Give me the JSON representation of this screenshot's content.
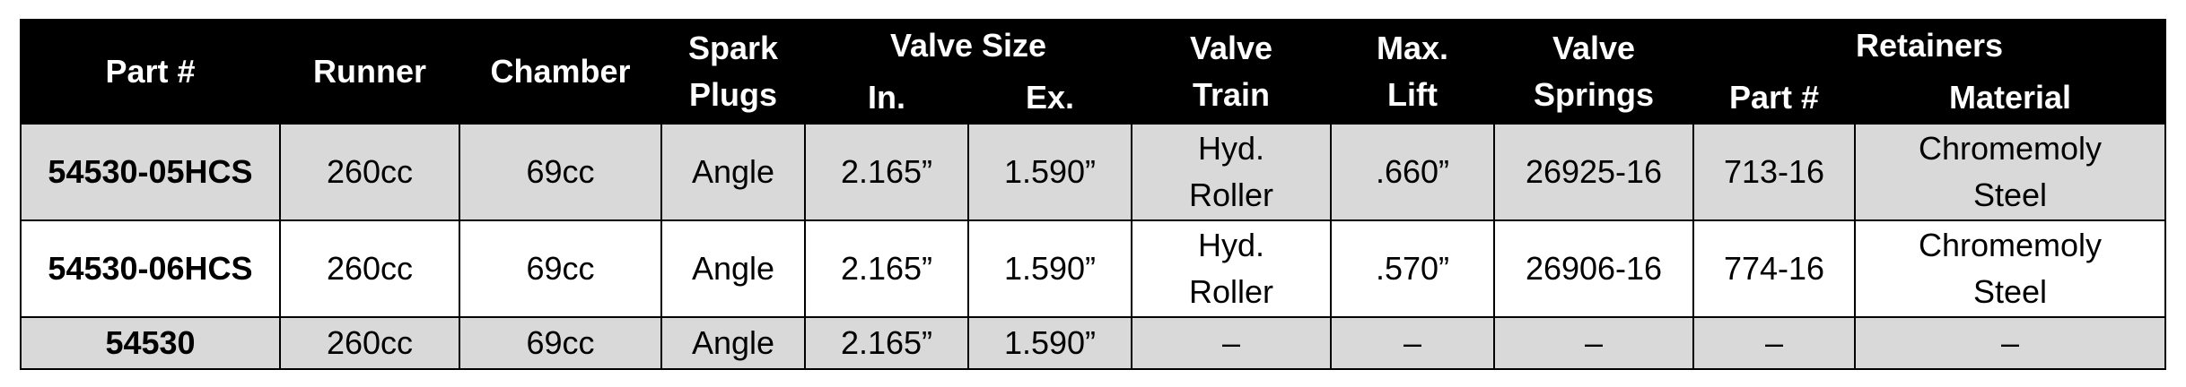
{
  "headers": {
    "part": "Part #",
    "runner": "Runner",
    "chamber": "Chamber",
    "spark_line1": "Spark",
    "spark_line2": "Plugs",
    "valve_size": "Valve Size",
    "valve_in": "In.",
    "valve_ex": "Ex.",
    "valve_train_line1": "Valve",
    "valve_train_line2": "Train",
    "max_lift_line1": "Max.",
    "max_lift_line2": "Lift",
    "valve_springs_line1": "Valve",
    "valve_springs_line2": "Springs",
    "retainers": "Retainers",
    "retainers_part": "Part #",
    "retainers_material": "Material"
  },
  "rows": [
    {
      "part": "54530-05HCS",
      "runner": "260cc",
      "chamber": "69cc",
      "spark": "Angle",
      "valve_in": "2.165”",
      "valve_ex": "1.590”",
      "valve_train_line1": "Hyd.",
      "valve_train_line2": "Roller",
      "max_lift": ".660”",
      "springs": "26925-16",
      "ret_part": "713-16",
      "material_line1": "Chromemoly",
      "material_line2": "Steel"
    },
    {
      "part": "54530-06HCS",
      "runner": "260cc",
      "chamber": "69cc",
      "spark": "Angle",
      "valve_in": "2.165”",
      "valve_ex": "1.590”",
      "valve_train_line1": "Hyd.",
      "valve_train_line2": "Roller",
      "max_lift": ".570”",
      "springs": "26906-16",
      "ret_part": "774-16",
      "material_line1": "Chromemoly",
      "material_line2": "Steel"
    },
    {
      "part": "54530",
      "runner": "260cc",
      "chamber": "69cc",
      "spark": "Angle",
      "valve_in": "2.165”",
      "valve_ex": "1.590”",
      "valve_train": "–",
      "max_lift": "–",
      "springs": "–",
      "ret_part": "–",
      "material": "–"
    }
  ],
  "colors": {
    "header_bg": "#000000",
    "header_text": "#ffffff",
    "row_gray": "#d9d9d9",
    "row_white": "#ffffff"
  }
}
